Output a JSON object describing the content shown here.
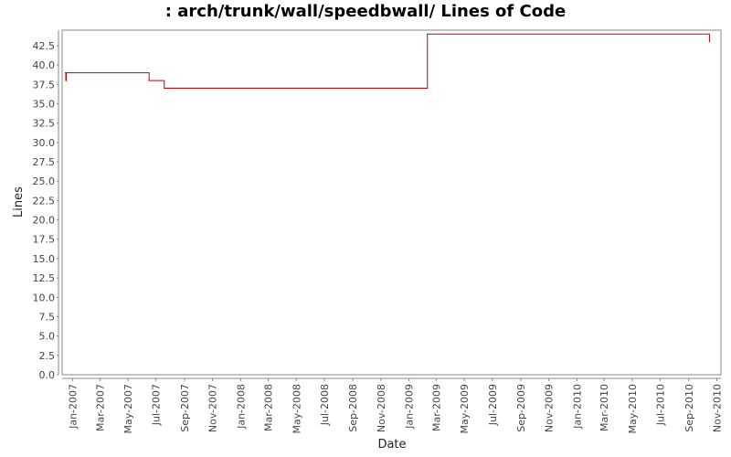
{
  "chart_data": {
    "type": "line",
    "title": ": arch/trunk/wall/speedbwall/ Lines of Code",
    "xlabel": "Date",
    "ylabel": "Lines",
    "ylim": [
      0,
      44.5
    ],
    "xlim": [
      "2006-12-09",
      "2010-11-10"
    ],
    "y_ticks": [
      "0.0",
      "2.5",
      "5.0",
      "7.5",
      "10.0",
      "12.5",
      "15.0",
      "17.5",
      "20.0",
      "22.5",
      "25.0",
      "27.5",
      "30.0",
      "32.5",
      "35.0",
      "37.5",
      "40.0",
      "42.5"
    ],
    "x_ticks": [
      {
        "date": "2007-01-01",
        "label": "Jan-2007"
      },
      {
        "date": "2007-03-01",
        "label": "Mar-2007"
      },
      {
        "date": "2007-05-01",
        "label": "May-2007"
      },
      {
        "date": "2007-07-01",
        "label": "Jul-2007"
      },
      {
        "date": "2007-09-01",
        "label": "Sep-2007"
      },
      {
        "date": "2007-11-01",
        "label": "Nov-2007"
      },
      {
        "date": "2008-01-01",
        "label": "Jan-2008"
      },
      {
        "date": "2008-03-01",
        "label": "Mar-2008"
      },
      {
        "date": "2008-05-01",
        "label": "May-2008"
      },
      {
        "date": "2008-07-01",
        "label": "Jul-2008"
      },
      {
        "date": "2008-09-01",
        "label": "Sep-2008"
      },
      {
        "date": "2008-11-01",
        "label": "Nov-2008"
      },
      {
        "date": "2009-01-01",
        "label": "Jan-2009"
      },
      {
        "date": "2009-03-01",
        "label": "Mar-2009"
      },
      {
        "date": "2009-05-01",
        "label": "May-2009"
      },
      {
        "date": "2009-07-01",
        "label": "Jul-2009"
      },
      {
        "date": "2009-09-01",
        "label": "Sep-2009"
      },
      {
        "date": "2009-11-01",
        "label": "Nov-2009"
      },
      {
        "date": "2010-01-01",
        "label": "Jan-2010"
      },
      {
        "date": "2010-03-01",
        "label": "Mar-2010"
      },
      {
        "date": "2010-05-01",
        "label": "May-2010"
      },
      {
        "date": "2010-07-01",
        "label": "Jul-2010"
      },
      {
        "date": "2010-09-01",
        "label": "Sep-2010"
      },
      {
        "date": "2010-11-01",
        "label": "Nov-2010"
      }
    ],
    "series": [
      {
        "color": "#cc0000",
        "step": true,
        "points": [
          {
            "x": "2006-12-16",
            "y": 39
          },
          {
            "x": "2006-12-17",
            "y": 38
          },
          {
            "x": "2006-12-18",
            "y": 39
          },
          {
            "x": "2007-06-16",
            "y": 38
          },
          {
            "x": "2007-07-19",
            "y": 37
          },
          {
            "x": "2009-02-10",
            "y": 44
          },
          {
            "x": "2010-10-16",
            "y": 43
          }
        ]
      }
    ],
    "grid": false,
    "plot_background": "#ffffff",
    "axis_color": "#888888"
  }
}
